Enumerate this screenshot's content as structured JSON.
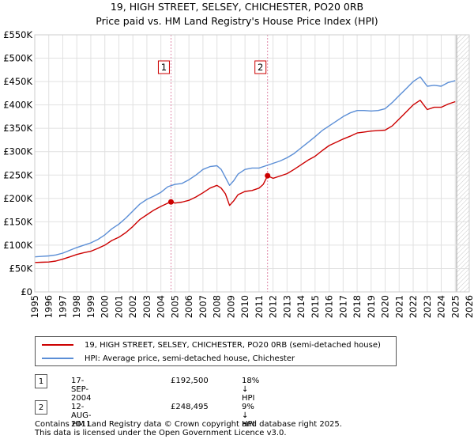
{
  "chart_data": {
    "type": "line",
    "title": "19, HIGH STREET, SELSEY, CHICHESTER, PO20 0RB",
    "subtitle": "Price paid vs. HM Land Registry's House Price Index (HPI)",
    "xlabel": "",
    "ylabel": "",
    "xlim": [
      1995,
      2026
    ],
    "ylim": [
      0,
      550000
    ],
    "x_ticks": [
      "1995",
      "1996",
      "1997",
      "1998",
      "1999",
      "2000",
      "2001",
      "2002",
      "2003",
      "2004",
      "2005",
      "2006",
      "2007",
      "2008",
      "2009",
      "2010",
      "2011",
      "2012",
      "2013",
      "2014",
      "2015",
      "2016",
      "2017",
      "2018",
      "2019",
      "2020",
      "2021",
      "2022",
      "2023",
      "2024",
      "2025",
      "2026"
    ],
    "y_ticks": [
      {
        "value": 0,
        "label": "£0"
      },
      {
        "value": 50000,
        "label": "£50K"
      },
      {
        "value": 100000,
        "label": "£100K"
      },
      {
        "value": 150000,
        "label": "£150K"
      },
      {
        "value": 200000,
        "label": "£200K"
      },
      {
        "value": 250000,
        "label": "£250K"
      },
      {
        "value": 300000,
        "label": "£300K"
      },
      {
        "value": 350000,
        "label": "£350K"
      },
      {
        "value": 400000,
        "label": "£400K"
      },
      {
        "value": 450000,
        "label": "£450K"
      },
      {
        "value": 500000,
        "label": "£500K"
      },
      {
        "value": 550000,
        "label": "£550K"
      }
    ],
    "grid": true,
    "forecast_start": 2025.1,
    "series": [
      {
        "name": "19, HIGH STREET, SELSEY, CHICHESTER, PO20 0RB (semi-detached house)",
        "color": "#cc0000",
        "x": [
          1995.0,
          1995.5,
          1996.0,
          1996.5,
          1997.0,
          1997.5,
          1998.0,
          1998.5,
          1999.0,
          1999.5,
          2000.0,
          2000.5,
          2001.0,
          2001.5,
          2002.0,
          2002.5,
          2003.0,
          2003.5,
          2004.0,
          2004.5,
          2004.72,
          2005.0,
          2005.5,
          2006.0,
          2006.5,
          2007.0,
          2007.5,
          2008.0,
          2008.3,
          2008.6,
          2008.9,
          2009.2,
          2009.5,
          2010.0,
          2010.5,
          2011.0,
          2011.3,
          2011.61,
          2012.0,
          2012.5,
          2013.0,
          2013.5,
          2014.0,
          2014.5,
          2015.0,
          2015.5,
          2016.0,
          2016.5,
          2017.0,
          2017.5,
          2018.0,
          2018.5,
          2019.0,
          2019.5,
          2020.0,
          2020.5,
          2021.0,
          2021.5,
          2022.0,
          2022.5,
          2023.0,
          2023.5,
          2024.0,
          2024.5,
          2025.0
        ],
        "values": [
          63000,
          63500,
          64000,
          66000,
          70000,
          75000,
          80000,
          84000,
          87000,
          93000,
          100000,
          110000,
          117000,
          127000,
          140000,
          155000,
          165000,
          175000,
          183000,
          190000,
          192500,
          190000,
          192000,
          196000,
          203000,
          212000,
          222000,
          228000,
          222000,
          210000,
          185000,
          195000,
          208000,
          215000,
          217000,
          222000,
          230000,
          248495,
          243000,
          248000,
          253000,
          262000,
          272000,
          282000,
          290000,
          302000,
          313000,
          320000,
          327000,
          333000,
          340000,
          342000,
          344000,
          345000,
          346000,
          355000,
          370000,
          385000,
          400000,
          410000,
          390000,
          395000,
          395000,
          402000,
          407000
        ]
      },
      {
        "name": "HPI: Average price, semi-detached house, Chichester",
        "color": "#5b8ed6",
        "x": [
          1995.0,
          1995.5,
          1996.0,
          1996.5,
          1997.0,
          1997.5,
          1998.0,
          1998.5,
          1999.0,
          1999.5,
          2000.0,
          2000.5,
          2001.0,
          2001.5,
          2002.0,
          2002.5,
          2003.0,
          2003.5,
          2004.0,
          2004.5,
          2005.0,
          2005.5,
          2006.0,
          2006.5,
          2007.0,
          2007.5,
          2008.0,
          2008.3,
          2008.6,
          2008.9,
          2009.2,
          2009.5,
          2010.0,
          2010.5,
          2011.0,
          2011.5,
          2012.0,
          2012.5,
          2013.0,
          2013.5,
          2014.0,
          2014.5,
          2015.0,
          2015.5,
          2016.0,
          2016.5,
          2017.0,
          2017.5,
          2018.0,
          2018.5,
          2019.0,
          2019.5,
          2020.0,
          2020.5,
          2021.0,
          2021.5,
          2022.0,
          2022.5,
          2023.0,
          2023.5,
          2024.0,
          2024.5,
          2025.0
        ],
        "values": [
          75000,
          76000,
          77000,
          79000,
          83000,
          89000,
          95000,
          100000,
          105000,
          112000,
          122000,
          135000,
          145000,
          158000,
          173000,
          188000,
          198000,
          205000,
          213000,
          225000,
          230000,
          232000,
          240000,
          250000,
          262000,
          268000,
          270000,
          262000,
          245000,
          228000,
          238000,
          252000,
          262000,
          265000,
          265000,
          270000,
          275000,
          280000,
          287000,
          296000,
          308000,
          320000,
          332000,
          345000,
          355000,
          365000,
          375000,
          383000,
          388000,
          388000,
          387000,
          388000,
          392000,
          405000,
          420000,
          435000,
          450000,
          460000,
          440000,
          442000,
          440000,
          448000,
          452000
        ]
      }
    ],
    "annotations": [
      {
        "label": "1",
        "x": 2004.72,
        "y": 192500
      },
      {
        "label": "2",
        "x": 2011.61,
        "y": 248495
      }
    ]
  },
  "legend": {
    "items": [
      {
        "label": "19, HIGH STREET, SELSEY, CHICHESTER, PO20 0RB (semi-detached house)",
        "color": "#cc0000"
      },
      {
        "label": "HPI: Average price, semi-detached house, Chichester",
        "color": "#5b8ed6"
      }
    ]
  },
  "transactions": [
    {
      "num": "1",
      "date": "17-SEP-2004",
      "price": "£192,500",
      "hpi": "18% ↓ HPI"
    },
    {
      "num": "2",
      "date": "12-AUG-2011",
      "price": "£248,495",
      "hpi": "9% ↓ HPI"
    }
  ],
  "footer": {
    "line1": "Contains HM Land Registry data © Crown copyright and database right 2025.",
    "line2": "This data is licensed under the Open Government Licence v3.0."
  }
}
